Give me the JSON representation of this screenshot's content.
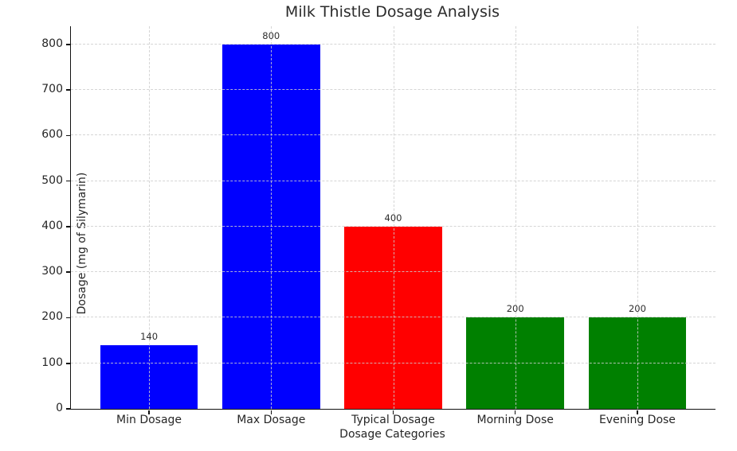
{
  "chart_data": {
    "type": "bar",
    "title": "Milk Thistle Dosage Analysis",
    "xlabel": "Dosage Categories",
    "ylabel": "Dosage (mg of Silymarin)",
    "categories": [
      "Min Dosage",
      "Max Dosage",
      "Typical Dosage",
      "Morning Dose",
      "Evening Dose"
    ],
    "values": [
      140,
      800,
      400,
      200,
      200
    ],
    "value_labels": [
      "140",
      "800",
      "400",
      "200",
      "200"
    ],
    "bar_colors": [
      "#0000ff",
      "#0000ff",
      "#ff0000",
      "#008000",
      "#008000"
    ],
    "yticks": [
      0,
      100,
      200,
      300,
      400,
      500,
      600,
      700,
      800
    ],
    "ylim": [
      0,
      840
    ],
    "grid": "dashed, horizontal and vertical, drawn above bars",
    "legend": "none"
  },
  "colors": {
    "grid": "#cecece",
    "axis": "#111111",
    "text": "#262626"
  }
}
